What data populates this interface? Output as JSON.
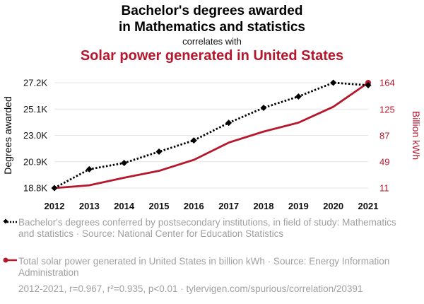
{
  "header": {
    "title_line1": "Bachelor's degrees awarded",
    "title_line2": "in Mathematics and statistics",
    "correlates": "correlates with",
    "title2": "Solar power generated in United States"
  },
  "colors": {
    "series1": "#000000",
    "series2": "#b5172c",
    "grid": "#e6e6e6",
    "muted": "#a0a0a0"
  },
  "chart_data": {
    "type": "line",
    "x": [
      "2012",
      "2013",
      "2014",
      "2015",
      "2016",
      "2017",
      "2018",
      "2019",
      "2020",
      "2021"
    ],
    "series": [
      {
        "name": "Bachelor's degrees awarded in Mathematics and statistics",
        "axis": "left",
        "style": "dotted",
        "marker": "diamond",
        "values": [
          18.8,
          20.3,
          20.8,
          21.7,
          22.6,
          24.0,
          25.2,
          26.1,
          27.2,
          27.0
        ]
      },
      {
        "name": "Solar power generated in United States (billion kWh)",
        "axis": "right",
        "style": "solid",
        "marker": "circle-end",
        "values": [
          11,
          15,
          26,
          36,
          52,
          77,
          93,
          106,
          129,
          164
        ]
      }
    ],
    "y_left": {
      "label": "Degrees awarded",
      "ticks": [
        "18.8K",
        "20.9K",
        "23.0K",
        "25.1K",
        "27.2K"
      ],
      "tick_values": [
        18.8,
        20.9,
        23.0,
        25.1,
        27.2
      ],
      "range": [
        18.8,
        27.2
      ]
    },
    "y_right": {
      "label": "Billion kWh",
      "ticks": [
        "11",
        "49",
        "87",
        "125",
        "164"
      ],
      "tick_values": [
        11,
        49,
        87,
        125,
        164
      ],
      "range": [
        11,
        164
      ]
    },
    "grid": true
  },
  "legend": {
    "item1": "Bachelor's degrees conferred by postsecondary institutions, in field of study: Mathematics and statistics · Source: National Center for Education Statistics",
    "item2": "Total solar power generated in United States in billion kWh · Source: Energy Information Administration"
  },
  "footer": "2012-2021, r=0.967, r²=0.935, p<0.01 · tylervigen.com/spurious/correlation/20391"
}
